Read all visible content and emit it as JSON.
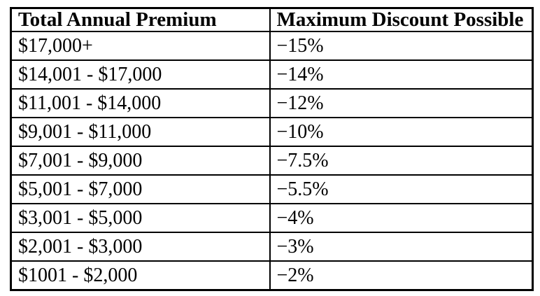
{
  "table": {
    "headers": {
      "premium": "Total Annual Premium",
      "discount": "Maximum Discount Possible"
    },
    "rows": [
      {
        "premium": "$17,000+",
        "discount": "−15%"
      },
      {
        "premium": "$14,001 - $17,000",
        "discount": "−14%"
      },
      {
        "premium": "$11,001 - $14,000",
        "discount": "−12%"
      },
      {
        "premium": "$9,001 - $11,000",
        "discount": "−10%"
      },
      {
        "premium": "$7,001 - $9,000",
        "discount": "−7.5%"
      },
      {
        "premium": "$5,001 - $7,000",
        "discount": "−5.5%"
      },
      {
        "premium": "$3,001 - $5,000",
        "discount": "−4%"
      },
      {
        "premium": "$2,001 - $3,000",
        "discount": "−3%"
      },
      {
        "premium": "$1001 - $2,000",
        "discount": "−2%"
      }
    ]
  },
  "colors": {
    "background": "#ffffff",
    "border": "#000000",
    "text": "#000000"
  }
}
